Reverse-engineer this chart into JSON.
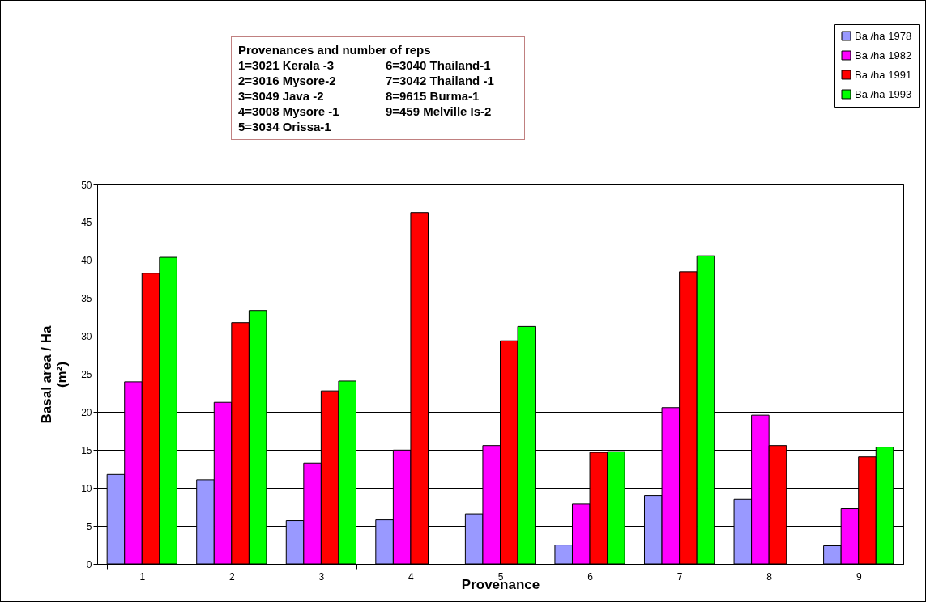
{
  "chart_data": {
    "type": "bar",
    "categories": [
      "1",
      "2",
      "3",
      "4",
      "5",
      "6",
      "7",
      "8",
      "9"
    ],
    "series": [
      {
        "name": "Ba /ha 1978",
        "color": "#9999ff",
        "values": [
          11.8,
          11.1,
          5.7,
          5.8,
          6.6,
          2.5,
          9.0,
          8.5,
          2.4
        ]
      },
      {
        "name": "Ba /ha 1982",
        "color": "#ff00ff",
        "values": [
          24.0,
          21.3,
          13.3,
          15.0,
          15.6,
          7.9,
          20.6,
          19.6,
          7.3
        ]
      },
      {
        "name": "Ba /ha 1991",
        "color": "#ff0000",
        "values": [
          38.3,
          31.8,
          22.8,
          46.3,
          29.4,
          14.7,
          38.5,
          15.6,
          14.1
        ]
      },
      {
        "name": "Ba /ha 1993",
        "color": "#00ff00",
        "values": [
          40.4,
          33.4,
          24.1,
          null,
          31.3,
          14.8,
          40.6,
          null,
          15.4
        ]
      }
    ],
    "xlabel": "Provenance",
    "ylabel": "Basal area / Ha\n(m²)",
    "ylim": [
      0,
      50
    ],
    "yticks": [
      0,
      5,
      10,
      15,
      20,
      25,
      30,
      35,
      40,
      45,
      50
    ],
    "grid": "y",
    "legend": "top right",
    "annotations": [
      "Provenances and number of reps",
      "1=3021 Kerala -3",
      "2=3016 Mysore-2",
      "3=3049 Java -2",
      "4=3008 Mysore -1",
      "5=3034 Orissa-1",
      "6=3040 Thailand-1",
      "7=3042 Thailand -1",
      "8=9615 Burma-1",
      "9=459 Melville Is-2"
    ]
  }
}
